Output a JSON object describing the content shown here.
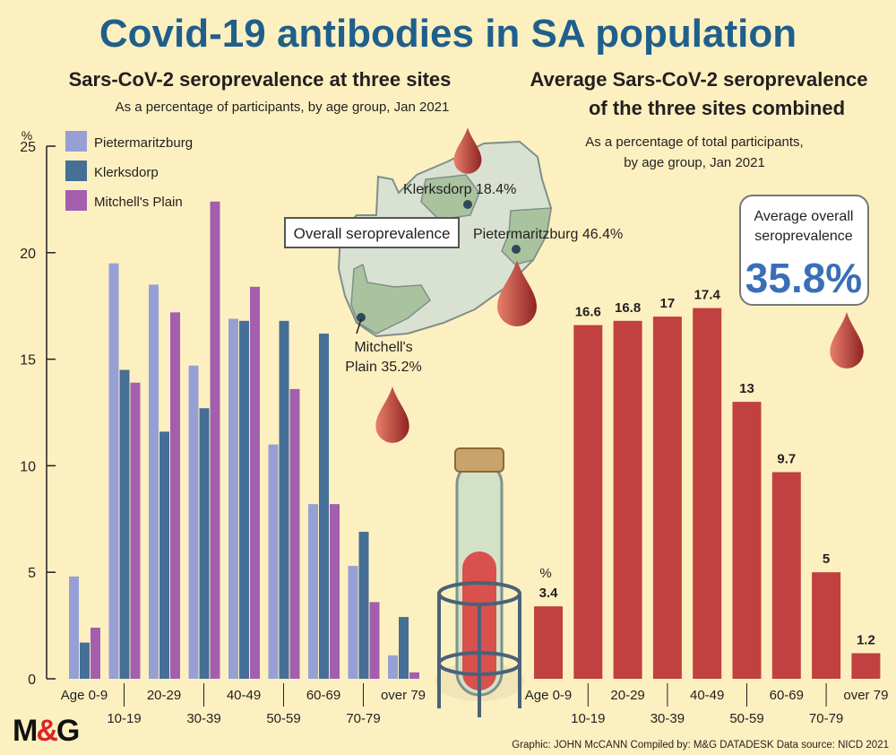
{
  "title": "Covid-19 antibodies in SA population",
  "brand": "M&G",
  "credits": "Graphic: JOHN McCANN  Compiled by: M&G DATADESK  Data source: NICD 2021",
  "map": {
    "label": "Overall seroprevalence",
    "sites": [
      {
        "name": "Klerksdorp 18.4%"
      },
      {
        "name": "Pietermaritzburg 46.4%"
      },
      {
        "name_line1": "Mitchell's",
        "name_line2": "Plain 35.2%"
      }
    ]
  },
  "callout": {
    "label_line1": "Average overall",
    "label_line2": "seroprevalence",
    "value": "35.8%"
  },
  "colors": {
    "background": "#fdf0c0",
    "title": "#1f5f8b",
    "pietermaritzburg": "#96a0d4",
    "klerksdorp": "#456f96",
    "mitchells_plain": "#a35fae",
    "average": "#c0413f"
  },
  "chart_data": [
    {
      "type": "bar",
      "title": "Sars-CoV-2 seroprevalence at three sites",
      "subtitle": "As a percentage of participants, by age group, Jan 2021",
      "ylabel": "%",
      "ylim": [
        0,
        25
      ],
      "yticks": [
        0,
        5,
        10,
        15,
        20,
        25
      ],
      "legend": "top-left",
      "categories": [
        "Age 0-9",
        "10-19",
        "20-29",
        "30-39",
        "40-49",
        "50-59",
        "60-69",
        "70-79",
        "over 79"
      ],
      "series": [
        {
          "name": "Pietermaritzburg",
          "values": [
            4.8,
            19.5,
            18.5,
            14.7,
            16.9,
            11.0,
            8.2,
            5.3,
            1.1
          ]
        },
        {
          "name": "Klerksdorp",
          "values": [
            1.7,
            14.5,
            11.6,
            12.7,
            16.8,
            16.8,
            16.2,
            6.9,
            2.9
          ]
        },
        {
          "name": "Mitchell's Plain",
          "values": [
            2.4,
            13.9,
            17.2,
            22.4,
            18.4,
            13.6,
            8.2,
            3.6,
            0.3
          ]
        }
      ]
    },
    {
      "type": "bar",
      "title_line1": "Average Sars-CoV-2 seroprevalence",
      "title_line2": "of the three sites combined",
      "subtitle_line1": "As a percentage of total participants,",
      "subtitle_line2": "by age group, Jan 2021",
      "unit_label": "%",
      "categories": [
        "Age 0-9",
        "10-19",
        "20-29",
        "30-39",
        "40-49",
        "50-59",
        "60-69",
        "70-79",
        "over 79"
      ],
      "values": [
        3.4,
        16.6,
        16.8,
        17,
        17.4,
        13,
        9.7,
        5,
        1.2
      ],
      "data_labels": [
        "3.4",
        "16.6",
        "16.8",
        "17",
        "17.4",
        "13",
        "9.7",
        "5",
        "1.2"
      ]
    }
  ]
}
